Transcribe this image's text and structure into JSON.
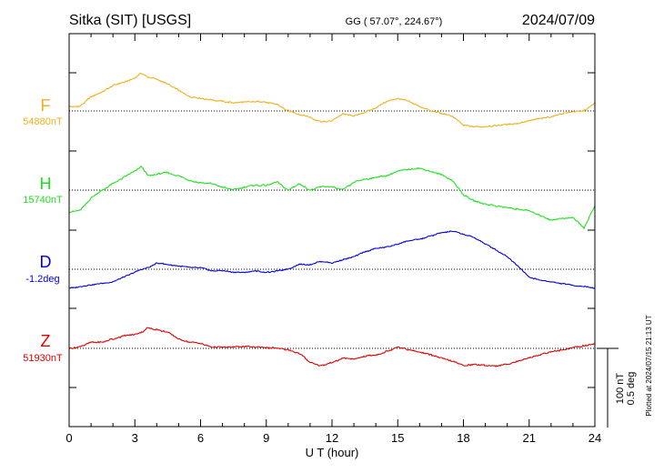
{
  "chart_data": {
    "type": "line",
    "title": "Sitka (SIT)  [USGS]",
    "coords": "GG ( 57.07°, 224.67°)",
    "date": "2024/07/09",
    "xlabel": "U T (hour)",
    "xlim": [
      0,
      24
    ],
    "x_ticks": [
      "0",
      "3",
      "6",
      "9",
      "12",
      "15",
      "18",
      "21",
      "24"
    ],
    "scale_labels": [
      "100 nT",
      "0.5 deg"
    ],
    "plotted_note": "Plotted at 2024/07/15 21:13 UT",
    "grid": "dotted baselines per channel",
    "colors": {
      "F": "#f0b020",
      "H": "#20e020",
      "D": "#0000e0",
      "Z": "#e00000"
    },
    "series": [
      {
        "name": "F",
        "baseline_label": "54880nT",
        "unit": "nT",
        "baseline": 54880,
        "t": [
          0,
          0.5,
          1,
          1.5,
          2,
          2.5,
          3,
          3.3,
          3.6,
          4,
          4.5,
          5,
          5.5,
          6,
          6.5,
          7,
          7.5,
          8,
          8.5,
          9,
          9.5,
          10,
          10.5,
          11,
          11.5,
          12,
          12.5,
          13,
          13.5,
          14,
          14.5,
          15,
          15.5,
          16,
          16.5,
          17,
          17.5,
          18,
          18.5,
          19,
          19.5,
          20,
          20.5,
          21,
          21.5,
          22,
          22.5,
          23,
          23.5,
          24
        ],
        "v": [
          5,
          6,
          18,
          24,
          32,
          36,
          42,
          48,
          43,
          40,
          34,
          26,
          18,
          16,
          14,
          12,
          10,
          11,
          12,
          11,
          8,
          0,
          -4,
          -8,
          -14,
          -12,
          -4,
          -6,
          -2,
          4,
          12,
          16,
          12,
          6,
          0,
          -3,
          -7,
          -18,
          -20,
          -20,
          -18,
          -17,
          -16,
          -12,
          -10,
          -7,
          -3,
          -1,
          0,
          10
        ]
      },
      {
        "name": "H",
        "baseline_label": "15740nT",
        "unit": "nT",
        "baseline": 15740,
        "t": [
          0,
          0.5,
          1,
          1.5,
          2,
          2.5,
          3,
          3.3,
          3.6,
          4,
          4.5,
          5,
          5.5,
          6,
          6.5,
          7,
          7.5,
          8,
          8.5,
          9,
          9.5,
          10,
          10.5,
          11,
          11.5,
          12,
          12.5,
          13,
          13.5,
          14,
          14.5,
          15,
          15.5,
          16,
          16.5,
          17,
          17.5,
          18,
          18.5,
          19,
          19.5,
          20,
          20.5,
          21,
          21.5,
          22,
          22.5,
          23,
          23.5,
          24
        ],
        "v": [
          -28,
          -26,
          -10,
          0,
          8,
          16,
          24,
          30,
          18,
          20,
          22,
          18,
          12,
          9,
          8,
          4,
          0,
          4,
          6,
          6,
          10,
          0,
          8,
          0,
          4,
          4,
          0,
          10,
          14,
          16,
          18,
          24,
          26,
          28,
          24,
          20,
          12,
          -6,
          -14,
          -18,
          -20,
          -22,
          -24,
          -26,
          -32,
          -38,
          -36,
          -34,
          -48,
          -20
        ]
      },
      {
        "name": "D",
        "baseline_label": "-1.2deg",
        "unit": "deg",
        "baseline": -1.2,
        "t": [
          0,
          0.5,
          1,
          1.5,
          2,
          2.5,
          3,
          3.3,
          3.6,
          4,
          4.5,
          5,
          5.5,
          6,
          6.5,
          7,
          7.5,
          8,
          8.5,
          9,
          9.5,
          10,
          10.5,
          11,
          11.5,
          12,
          12.5,
          13,
          13.5,
          14,
          14.5,
          15,
          15.5,
          16,
          16.5,
          17,
          17.5,
          18,
          18.5,
          19,
          19.5,
          20,
          20.5,
          21,
          21.5,
          22,
          22.5,
          23,
          23.5,
          24
        ],
        "v": [
          -0.12,
          -0.11,
          -0.1,
          -0.09,
          -0.08,
          -0.05,
          -0.02,
          0,
          0.01,
          0.04,
          0.03,
          0.02,
          0.01,
          0.01,
          -0.01,
          -0.01,
          -0.02,
          -0.02,
          -0.01,
          -0.02,
          -0.01,
          0,
          0.03,
          0.03,
          0.05,
          0.04,
          0.06,
          0.08,
          0.11,
          0.13,
          0.14,
          0.16,
          0.18,
          0.19,
          0.21,
          0.23,
          0.24,
          0.22,
          0.2,
          0.16,
          0.12,
          0.08,
          0.02,
          -0.05,
          -0.07,
          -0.08,
          -0.09,
          -0.1,
          -0.11,
          -0.12
        ]
      },
      {
        "name": "Z",
        "baseline_label": "51930nT",
        "unit": "nT",
        "baseline": 51930,
        "t": [
          0,
          0.5,
          1,
          1.5,
          2,
          2.5,
          3,
          3.3,
          3.6,
          4,
          4.5,
          5,
          5.5,
          6,
          6.5,
          7,
          7.5,
          8,
          8.5,
          9,
          9.5,
          10,
          10.5,
          11,
          11.5,
          12,
          12.5,
          13,
          13.5,
          14,
          14.5,
          15,
          15.5,
          16,
          16.5,
          17,
          17.5,
          18,
          18.5,
          19,
          19.5,
          20,
          20.5,
          21,
          21.5,
          22,
          22.5,
          23,
          23.5,
          24
        ],
        "v": [
          0,
          2,
          8,
          8,
          12,
          16,
          18,
          20,
          26,
          24,
          20,
          12,
          8,
          6,
          2,
          1,
          2,
          2,
          2,
          1,
          0,
          -2,
          -6,
          -18,
          -22,
          -18,
          -12,
          -14,
          -10,
          -8,
          -4,
          2,
          -2,
          -5,
          -8,
          -12,
          -16,
          -22,
          -20,
          -22,
          -22,
          -20,
          -16,
          -12,
          -8,
          -4,
          -2,
          1,
          3,
          6
        ]
      }
    ]
  }
}
